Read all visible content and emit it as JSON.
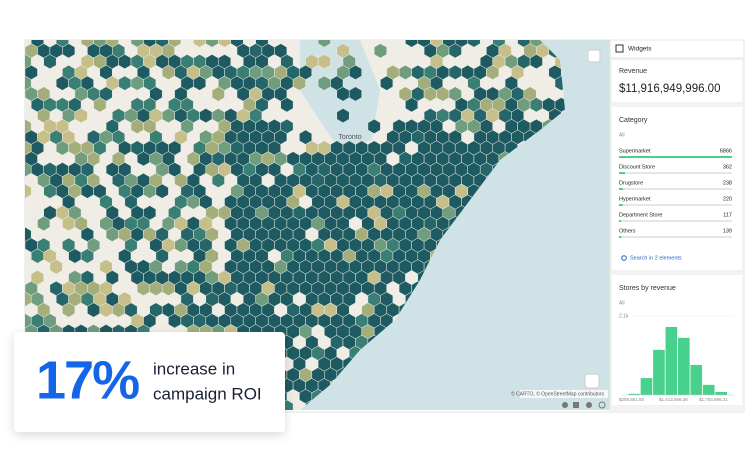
{
  "map": {
    "labels": [
      "Toronto"
    ],
    "attribution": "© CARTO, © OpenStreetMap contributors"
  },
  "widgets": {
    "header": "Widgets",
    "revenue": {
      "title": "Revenue",
      "value": "$11,916,949,996.00"
    },
    "category": {
      "title": "Category",
      "filter": "All",
      "rows": [
        {
          "name": "Supermarket",
          "value": 6866
        },
        {
          "name": "Discount Store",
          "value": 362
        },
        {
          "name": "Drugstore",
          "value": 238
        },
        {
          "name": "Hypermarket",
          "value": 220
        },
        {
          "name": "Department Store",
          "value": 117
        },
        {
          "name": "Others",
          "value": 139
        }
      ],
      "search": "Search in 2 elements"
    },
    "histogram": {
      "title": "Stores by revenue",
      "filter": "All",
      "ylim": [
        0,
        2100
      ],
      "yticks": [
        {
          "value": 2100,
          "label": "2.1k"
        }
      ],
      "values": [
        30,
        450,
        1200,
        1810,
        1520,
        800,
        270,
        80
      ],
      "x_labels": [
        "$259,851.00",
        "$1,413,568.38",
        "$1,753,886.31"
      ]
    }
  },
  "card": {
    "figure": "17%",
    "line1": "increase in",
    "line2": "campaign ROI"
  }
}
